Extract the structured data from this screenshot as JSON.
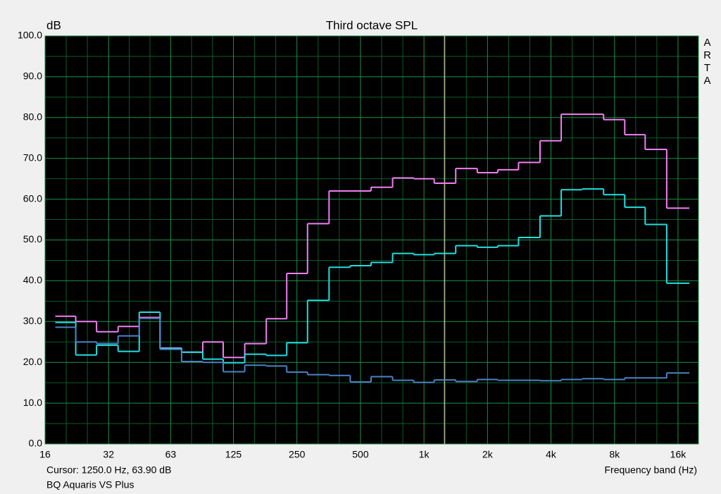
{
  "chart_data": {
    "type": "step",
    "title": "Third octave SPL",
    "ylabel": "dB",
    "xlabel": "Frequency band (Hz)",
    "watermark": "ARTA",
    "cursor_text": "Cursor:  1250.0 Hz, 63.90 dB",
    "cursor_x": 1250,
    "device": "BQ Aquaris VS Plus",
    "xscale": "log",
    "xlim": [
      16,
      20000
    ],
    "ylim": [
      0,
      100
    ],
    "xticks": [
      16,
      32,
      63,
      125,
      250,
      500,
      {
        "value": 1000,
        "label": "1k"
      },
      {
        "value": 2000,
        "label": "2k"
      },
      {
        "value": 4000,
        "label": "4k"
      },
      {
        "value": 8000,
        "label": "8k"
      },
      {
        "value": 16000,
        "label": "16k"
      }
    ],
    "yticks": [
      {
        "value": 0,
        "label": "0.0"
      },
      {
        "value": 10,
        "label": "10.0"
      },
      {
        "value": 20,
        "label": "20.0"
      },
      {
        "value": 30,
        "label": "30.0"
      },
      {
        "value": 40,
        "label": "40.0"
      },
      {
        "value": 50,
        "label": "50.0"
      },
      {
        "value": 60,
        "label": "60.0"
      },
      {
        "value": 70,
        "label": "70.0"
      },
      {
        "value": 80,
        "label": "80.0"
      },
      {
        "value": 90,
        "label": "90.0"
      },
      {
        "value": 100,
        "label": "100.0"
      }
    ],
    "grid": true,
    "x_minor_divisions": 3,
    "y_minor_divisions": 2,
    "x": [
      20,
      25,
      31.5,
      40,
      50,
      63,
      80,
      100,
      125,
      160,
      200,
      250,
      315,
      400,
      500,
      630,
      800,
      1000,
      1250,
      1600,
      2000,
      2500,
      3150,
      4000,
      5000,
      6300,
      8000,
      10000,
      12500,
      16000
    ],
    "series": [
      {
        "color": "#f27ef2",
        "values": [
          31.3,
          30.0,
          27.5,
          28.8,
          31.0,
          23.5,
          22.5,
          25.0,
          21.2,
          24.6,
          30.7,
          41.8,
          54.0,
          62.0,
          62.0,
          62.9,
          65.2,
          65.0,
          63.9,
          67.5,
          66.5,
          67.2,
          69.0,
          74.3,
          80.8,
          80.8,
          79.5,
          75.8,
          72.2,
          57.8
        ]
      },
      {
        "color": "#22dede",
        "values": [
          29.8,
          21.8,
          24.2,
          22.7,
          32.3,
          23.4,
          22.5,
          20.8,
          19.9,
          22.0,
          21.7,
          24.8,
          35.2,
          43.3,
          43.7,
          44.5,
          46.7,
          46.4,
          46.7,
          48.6,
          48.2,
          48.6,
          50.6,
          55.9,
          62.3,
          62.5,
          61.1,
          58.0,
          53.8,
          39.4
        ]
      },
      {
        "color": "#4b82c6",
        "values": [
          28.6,
          25.0,
          24.6,
          26.5,
          30.8,
          23.2,
          20.2,
          20.0,
          17.7,
          19.3,
          19.1,
          17.6,
          17.0,
          16.8,
          15.2,
          16.5,
          15.6,
          15.1,
          15.7,
          15.3,
          15.8,
          15.6,
          15.6,
          15.5,
          15.8,
          16.0,
          15.8,
          16.2,
          16.2,
          17.4
        ]
      }
    ]
  }
}
